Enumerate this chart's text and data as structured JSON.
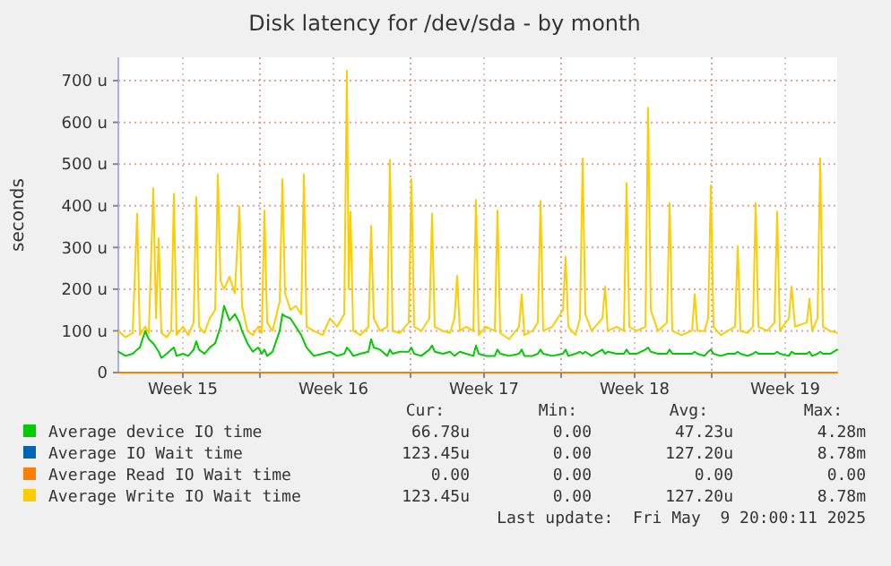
{
  "chart_data": {
    "type": "line",
    "title": "Disk latency for /dev/sda - by month",
    "ylabel": "seconds",
    "xlim": [
      "2025-04-07T10:00",
      "2025-05-10T20:00"
    ],
    "ylim": [
      0,
      756
    ],
    "xticks": [
      {
        "value": "2025-04-10T10:00",
        "label": "Week 15"
      },
      {
        "value": "2025-04-14T00:00",
        "label": null
      },
      {
        "value": "2025-04-17T10:00",
        "label": "Week 16"
      },
      {
        "value": "2025-04-21T00:00",
        "label": null
      },
      {
        "value": "2025-04-24T10:00",
        "label": "Week 17"
      },
      {
        "value": "2025-04-28T00:00",
        "label": null
      },
      {
        "value": "2025-05-01T10:00",
        "label": "Week 18"
      },
      {
        "value": "2025-05-05T00:00",
        "label": null
      },
      {
        "value": "2025-05-08T10:00",
        "label": "Week 19"
      }
    ],
    "yticks": [
      0,
      {
        "value": 100,
        "label": "100 u"
      },
      {
        "value": 200,
        "label": "200 u"
      },
      {
        "value": 300,
        "label": "300 u"
      },
      {
        "value": 400,
        "label": "400 u"
      },
      {
        "value": 500,
        "label": "500 u"
      },
      {
        "value": 600,
        "label": "600 u"
      },
      {
        "value": 700,
        "label": "700 u"
      }
    ],
    "grid": true,
    "legend": "bottom",
    "x": [
      "2025-04-07T10:00",
      "2025-04-07T18:00",
      "2025-04-08T02:00",
      "2025-04-08T07:00",
      "2025-04-08T10:00",
      "2025-04-08T16:00",
      "2025-04-08T20:00",
      "2025-04-09T01:00",
      "2025-04-09T04:00",
      "2025-04-09T07:00",
      "2025-04-09T10:00",
      "2025-04-09T16:00",
      "2025-04-09T21:00",
      "2025-04-10T00:00",
      "2025-04-10T03:00",
      "2025-04-10T10:00",
      "2025-04-10T16:00",
      "2025-04-10T22:00",
      "2025-04-11T01:00",
      "2025-04-11T04:00",
      "2025-04-11T10:00",
      "2025-04-11T16:00",
      "2025-04-11T22:00",
      "2025-04-12T01:00",
      "2025-04-12T04:00",
      "2025-04-12T08:00",
      "2025-04-12T14:00",
      "2025-04-12T20:00",
      "2025-04-13T01:00",
      "2025-04-13T04:00",
      "2025-04-13T10:00",
      "2025-04-13T16:00",
      "2025-04-13T22:00",
      "2025-04-14T02:00",
      "2025-04-14T05:00",
      "2025-04-14T08:00",
      "2025-04-14T14:00",
      "2025-04-14T22:00",
      "2025-04-15T01:00",
      "2025-04-15T04:00",
      "2025-04-15T10:00",
      "2025-04-15T16:00",
      "2025-04-15T22:00",
      "2025-04-16T01:00",
      "2025-04-16T04:00",
      "2025-04-16T12:00",
      "2025-04-16T22:00",
      "2025-04-17T06:00",
      "2025-04-17T14:00",
      "2025-04-17T22:00",
      "2025-04-18T01:00",
      "2025-04-18T03:00",
      "2025-04-18T05:00",
      "2025-04-18T08:00",
      "2025-04-18T16:00",
      "2025-04-19T01:00",
      "2025-04-19T04:00",
      "2025-04-19T07:00",
      "2025-04-19T14:00",
      "2025-04-19T22:00",
      "2025-04-20T01:00",
      "2025-04-20T04:00",
      "2025-04-20T12:00",
      "2025-04-20T22:00",
      "2025-04-21T01:00",
      "2025-04-21T04:00",
      "2025-04-21T12:00",
      "2025-04-21T21:00",
      "2025-04-22T00:00",
      "2025-04-22T03:00",
      "2025-04-22T12:00",
      "2025-04-22T20:00",
      "2025-04-23T01:00",
      "2025-04-23T04:00",
      "2025-04-23T07:00",
      "2025-04-23T14:00",
      "2025-04-23T22:00",
      "2025-04-24T01:00",
      "2025-04-24T04:00",
      "2025-04-24T12:00",
      "2025-04-24T22:00",
      "2025-04-25T01:00",
      "2025-04-25T04:00",
      "2025-04-25T14:00",
      "2025-04-26T01:00",
      "2025-04-26T04:00",
      "2025-04-26T07:00",
      "2025-04-26T16:00",
      "2025-04-26T22:00",
      "2025-04-27T01:00",
      "2025-04-27T04:00",
      "2025-04-27T14:00",
      "2025-04-28T02:00",
      "2025-04-28T05:00",
      "2025-04-28T08:00",
      "2025-04-28T16:00",
      "2025-04-28T21:00",
      "2025-04-29T00:00",
      "2025-04-29T03:00",
      "2025-04-29T10:00",
      "2025-04-29T22:00",
      "2025-04-30T01:00",
      "2025-04-30T04:00",
      "2025-04-30T14:00",
      "2025-04-30T22:00",
      "2025-05-01T01:00",
      "2025-05-01T04:00",
      "2025-05-01T12:00",
      "2025-05-01T22:00",
      "2025-05-02T01:00",
      "2025-05-02T04:00",
      "2025-05-02T12:00",
      "2025-05-02T22:00",
      "2025-05-03T01:00",
      "2025-05-03T04:00",
      "2025-05-03T14:00",
      "2025-05-04T02:00",
      "2025-05-04T05:00",
      "2025-05-04T08:00",
      "2025-05-04T16:00",
      "2025-05-04T20:00",
      "2025-05-04T23:00",
      "2025-05-05T02:00",
      "2025-05-05T10:00",
      "2025-05-05T18:00",
      "2025-05-06T02:00",
      "2025-05-06T05:00",
      "2025-05-06T08:00",
      "2025-05-06T16:00",
      "2025-05-06T22:00",
      "2025-05-07T01:00",
      "2025-05-07T04:00",
      "2025-05-07T14:00",
      "2025-05-07T22:00",
      "2025-05-08T01:00",
      "2025-05-08T04:00",
      "2025-05-08T14:00",
      "2025-05-08T17:00",
      "2025-05-08T21:00",
      "2025-05-09T10:00",
      "2025-05-09T13:00",
      "2025-05-09T16:00",
      "2025-05-09T22:00",
      "2025-05-10T01:00",
      "2025-05-10T04:00",
      "2025-05-10T12:00",
      "2025-05-10T20:00"
    ],
    "series": [
      {
        "name": "Average device IO time",
        "color": "#00cc00",
        "values": [
          50,
          40,
          45,
          55,
          60,
          100,
          80,
          70,
          60,
          50,
          35,
          45,
          55,
          60,
          40,
          45,
          40,
          55,
          75,
          55,
          45,
          60,
          70,
          90,
          110,
          160,
          125,
          140,
          120,
          100,
          70,
          50,
          60,
          45,
          55,
          40,
          50,
          100,
          140,
          135,
          130,
          110,
          90,
          75,
          60,
          40,
          45,
          50,
          40,
          45,
          60,
          55,
          50,
          40,
          45,
          50,
          80,
          60,
          55,
          40,
          55,
          45,
          50,
          50,
          60,
          45,
          40,
          55,
          65,
          50,
          45,
          50,
          40,
          45,
          50,
          45,
          40,
          65,
          45,
          40,
          40,
          55,
          45,
          40,
          45,
          55,
          40,
          40,
          45,
          55,
          45,
          40,
          45,
          55,
          40,
          45,
          50,
          45,
          50,
          40,
          55,
          45,
          50,
          45,
          45,
          55,
          45,
          45,
          55,
          60,
          50,
          45,
          45,
          55,
          45,
          45,
          45,
          50,
          45,
          40,
          50,
          55,
          45,
          40,
          45,
          45,
          50,
          45,
          40,
          45,
          50,
          45,
          45,
          45,
          50,
          45,
          40,
          50,
          45,
          45,
          50,
          40,
          45,
          50,
          45,
          45,
          55
        ]
      },
      {
        "name": "Average IO Wait time",
        "color": "#0066b3",
        "values": [
          null,
          null,
          null,
          null,
          null,
          null,
          null,
          null,
          null,
          null,
          null,
          null,
          null,
          null,
          null,
          null,
          null,
          null,
          null,
          null,
          null,
          null,
          null,
          null,
          null,
          null,
          null,
          null,
          null,
          null,
          null,
          null,
          null,
          null,
          null,
          null,
          null,
          null,
          null,
          null,
          null,
          null,
          null,
          null,
          null,
          null,
          null,
          null,
          null,
          null,
          null,
          null,
          null,
          null,
          null,
          null,
          null,
          null,
          null,
          null,
          null,
          null,
          null,
          null,
          null,
          null,
          null,
          null,
          null,
          null,
          null,
          null,
          null,
          null,
          null,
          null,
          null,
          null,
          null,
          null,
          null,
          null,
          null,
          null,
          null,
          null,
          null,
          null,
          null,
          null,
          null,
          null,
          null,
          null,
          null,
          null,
          null,
          null,
          null,
          null,
          null,
          null,
          null,
          null,
          null,
          null,
          null,
          null,
          null,
          null,
          null,
          null,
          null,
          null,
          null,
          null,
          null,
          null,
          null,
          null,
          null,
          null,
          null,
          null,
          null,
          null,
          null,
          null,
          null,
          null,
          null,
          null,
          null,
          null,
          null,
          null,
          null,
          null,
          null,
          null,
          null,
          null,
          null,
          null,
          null,
          null,
          null
        ]
      },
      {
        "name": "Average Read IO Wait time",
        "color": "#ff8000",
        "values": [
          0,
          0,
          0,
          0,
          0,
          0,
          0,
          0,
          0,
          0,
          0,
          0,
          0,
          0,
          0,
          0,
          0,
          0,
          0,
          0,
          0,
          0,
          0,
          0,
          0,
          0,
          0,
          0,
          0,
          0,
          0,
          0,
          0,
          0,
          0,
          0,
          0,
          0,
          0,
          0,
          0,
          0,
          0,
          0,
          0,
          0,
          0,
          0,
          0,
          0,
          0,
          0,
          0,
          0,
          0,
          0,
          0,
          0,
          0,
          0,
          0,
          0,
          0,
          0,
          0,
          0,
          0,
          0,
          0,
          0,
          0,
          0,
          0,
          0,
          0,
          0,
          0,
          0,
          0,
          0,
          0,
          0,
          0,
          0,
          0,
          0,
          0,
          0,
          0,
          0,
          0,
          0,
          0,
          0,
          0,
          0,
          0,
          0,
          0,
          0,
          0,
          0,
          0,
          0,
          0,
          0,
          0,
          0,
          0,
          0,
          0,
          0,
          0,
          0,
          0,
          0,
          0,
          0,
          0,
          0,
          0,
          0,
          0,
          0,
          0,
          0,
          0,
          0,
          0,
          0,
          0,
          0,
          0,
          0,
          0,
          0,
          0,
          0,
          0,
          0,
          0,
          0,
          0,
          0,
          0,
          0,
          0
        ]
      },
      {
        "name": "Average Write IO Wait time",
        "color": "#ffcc00",
        "values": [
          100,
          85,
          95,
          381,
          90,
          110,
          95,
          442,
          130,
          322,
          95,
          85,
          100,
          429,
          90,
          110,
          90,
          120,
          421,
          110,
          95,
          130,
          150,
          475,
          220,
          200,
          230,
          190,
          398,
          160,
          100,
          90,
          110,
          95,
          389,
          120,
          100,
          170,
          464,
          190,
          150,
          160,
          140,
          475,
          110,
          100,
          90,
          130,
          110,
          140,
          724,
          200,
          386,
          100,
          90,
          110,
          352,
          130,
          100,
          110,
          510,
          100,
          95,
          120,
          464,
          110,
          100,
          130,
          381,
          110,
          100,
          95,
          130,
          232,
          100,
          110,
          100,
          414,
          90,
          110,
          100,
          389,
          95,
          80,
          110,
          188,
          90,
          100,
          120,
          412,
          100,
          110,
          150,
          278,
          110,
          90,
          130,
          514,
          140,
          100,
          130,
          206,
          100,
          110,
          100,
          455,
          110,
          100,
          110,
          635,
          150,
          100,
          120,
          406,
          100,
          90,
          100,
          188,
          100,
          100,
          130,
          449,
          110,
          90,
          100,
          110,
          303,
          100,
          95,
          110,
          406,
          110,
          100,
          120,
          386,
          100,
          130,
          206,
          110,
          120,
          177,
          100,
          130,
          514,
          110,
          100,
          95
        ]
      }
    ],
    "annotations": [
      "Cur:",
      "Min:",
      "Avg:",
      "Max:",
      "66.78u",
      "0.00",
      "47.23u",
      "4.28m",
      "123.45u",
      "0.00",
      "127.20u",
      "8.78m",
      "0.00",
      "0.00",
      "0.00",
      "0.00",
      "123.45u",
      "0.00",
      "127.20u",
      "8.78m",
      "Last update:  Fri May  9 20:00:11 2025"
    ]
  }
}
